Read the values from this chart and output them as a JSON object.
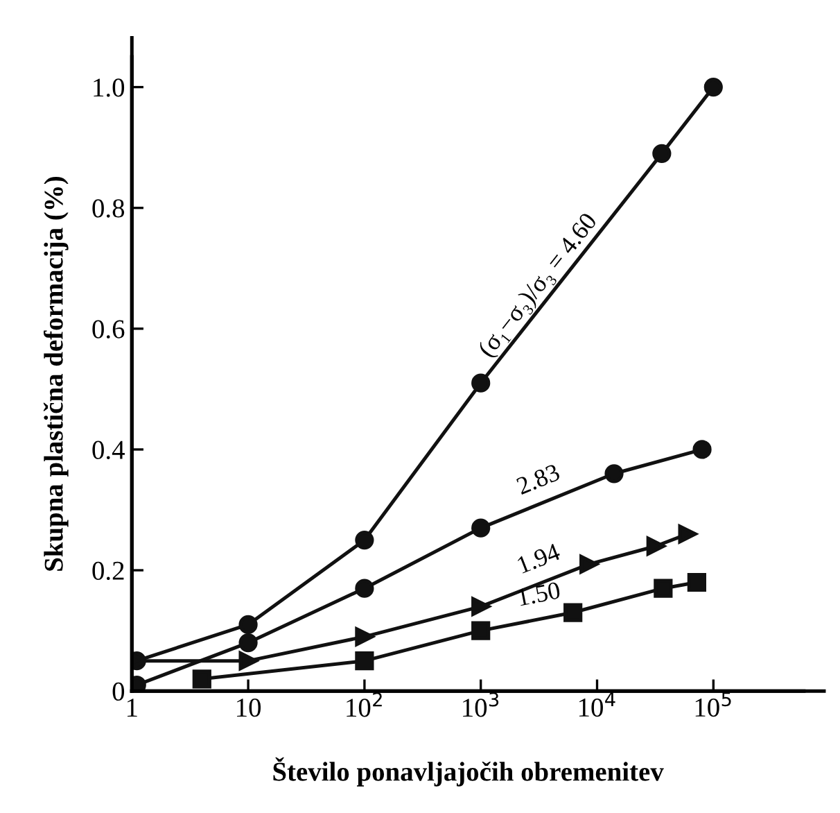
{
  "chart_data": {
    "type": "line",
    "xlabel": "Število ponavljajočih obremenitev",
    "ylabel": "Skupna plastična deformacija (%)",
    "log": "x",
    "xlim": [
      1,
      600000
    ],
    "xticks": [
      1,
      10,
      {
        "value": 100,
        "label": "10$^{2}$"
      },
      {
        "value": 1000,
        "label": "10$^{3}$"
      },
      {
        "value": 10000,
        "label": "10$^{4}$"
      },
      {
        "value": 100000,
        "label": "10$^{5}$"
      }
    ],
    "ylim": [
      0,
      1.05
    ],
    "yticks": [
      0,
      0.2,
      0.4,
      0.6,
      0.8,
      {
        "value": 1,
        "label": "1.0"
      }
    ],
    "grid": false,
    "legend": false,
    "line_style": "solid",
    "series": [
      {
        "name": "(σ₁−σ₃)/σ₃ = 4.60",
        "color": "#111111",
        "marker": "circle",
        "x": [
          1.1,
          10,
          100,
          1000,
          36000,
          100000
        ],
        "values": [
          0.05,
          0.11,
          0.25,
          0.51,
          0.89,
          1.0
        ]
      },
      {
        "name": "2.83",
        "color": "#111111",
        "marker": "circle",
        "x": [
          1.1,
          10,
          100,
          1000,
          14000,
          80000
        ],
        "values": [
          0.01,
          0.08,
          0.17,
          0.27,
          0.36,
          0.4
        ]
      },
      {
        "name": "1.94",
        "color": "#111111",
        "marker": "triangle",
        "x": [
          1.1,
          10,
          100,
          1000,
          8500,
          32000,
          60000
        ],
        "values": [
          0.05,
          0.05,
          0.09,
          0.14,
          0.21,
          0.24,
          0.26
        ]
      },
      {
        "name": "1.50",
        "color": "#111111",
        "marker": "square",
        "x": [
          4,
          100,
          1000,
          6200,
          37000,
          72000
        ],
        "values": [
          0.02,
          0.05,
          0.1,
          0.13,
          0.17,
          0.18
        ]
      }
    ]
  }
}
